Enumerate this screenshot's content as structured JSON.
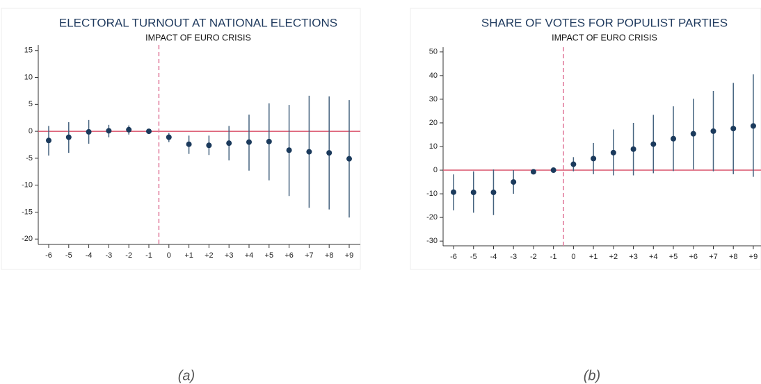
{
  "chart_data": [
    {
      "type": "errorbar",
      "title": "ELECTORAL TURNOUT AT NATIONAL ELECTIONS",
      "subtitle": "IMPACT OF EURO CRISIS",
      "caption": "(a)",
      "categories": [
        "-6",
        "-5",
        "-4",
        "-3",
        "-2",
        "-1",
        "0",
        "+1",
        "+2",
        "+3",
        "+4",
        "+5",
        "+6",
        "+7",
        "+8",
        "+9"
      ],
      "values": [
        -1.7,
        -1.1,
        -0.1,
        0.1,
        0.3,
        0,
        -1.1,
        -2.4,
        -2.6,
        -2.2,
        -2.0,
        -1.9,
        -3.5,
        -3.8,
        -4.0,
        -5.1
      ],
      "lower": [
        -4.5,
        -4.0,
        -2.3,
        -1.1,
        -0.6,
        null,
        -2.0,
        -4.2,
        -4.4,
        -5.4,
        -7.3,
        -9.1,
        -12.0,
        -14.2,
        -14.5,
        -16.0
      ],
      "upper": [
        1.0,
        1.7,
        2.1,
        1.2,
        1.1,
        null,
        -0.3,
        -0.8,
        -0.8,
        1.0,
        3.1,
        5.2,
        4.9,
        6.6,
        6.5,
        5.8
      ],
      "color": "#1b3a5c",
      "bar_color": "#45637f",
      "ylim": [
        -21,
        16
      ],
      "yticks": [
        -20,
        -15,
        -10,
        -5,
        0,
        5,
        10,
        15
      ],
      "hline": 0,
      "vline": 5.5,
      "hline_color": "#d9506a",
      "vline_color": "#e0789a"
    },
    {
      "type": "errorbar",
      "title": "SHARE OF VOTES FOR POPULIST PARTIES",
      "subtitle": "IMPACT OF EURO CRISIS",
      "caption": "(b)",
      "categories": [
        "-6",
        "-5",
        "-4",
        "-3",
        "-2",
        "-1",
        "0",
        "+1",
        "+2",
        "+3",
        "+4",
        "+5",
        "+6",
        "+7",
        "+8",
        "+9"
      ],
      "values": [
        -9.3,
        -9.4,
        -9.4,
        -5.0,
        -0.7,
        0,
        2.5,
        4.9,
        7.4,
        8.9,
        11.0,
        13.3,
        15.4,
        16.5,
        17.6,
        18.7
      ],
      "lower": [
        -17.0,
        -18.0,
        -19.0,
        -10.0,
        -1.2,
        null,
        -0.5,
        -1.7,
        -2.2,
        -2.2,
        -1.3,
        -0.4,
        0.3,
        -0.5,
        -1.7,
        -2.8
      ],
      "upper": [
        -1.8,
        -0.5,
        0.3,
        0.0,
        -0.2,
        null,
        5.5,
        11.5,
        17.2,
        20.0,
        23.4,
        27.0,
        30.2,
        33.5,
        36.9,
        40.5
      ],
      "color": "#1b3a5c",
      "bar_color": "#45637f",
      "ylim": [
        -32,
        52
      ],
      "yticks": [
        -30,
        -20,
        -10,
        0,
        10,
        20,
        30,
        40,
        50
      ],
      "hline": 0,
      "vline": 5.5,
      "hline_color": "#d9506a",
      "vline_color": "#e0789a"
    }
  ]
}
